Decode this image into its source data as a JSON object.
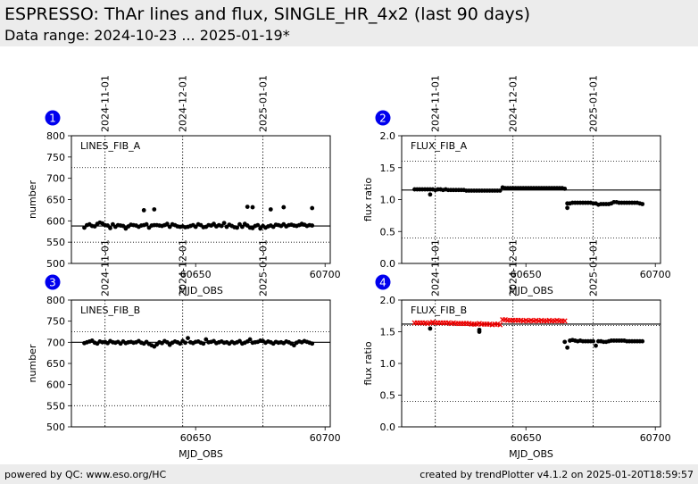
{
  "header": {
    "title": "ESPRESSO: ThAr lines and flux, SINGLE_HR_4x2 (last 90 days)",
    "subtitle": "Data range: 2024-10-23 ... 2025-01-19*"
  },
  "footer": {
    "left": "powered by QC: www.eso.org/HC",
    "right": "created by trendPlotter v4.1.2 on 2025-01-20T18:59:57"
  },
  "colors": {
    "background": "#ffffff",
    "band": "#ececec",
    "badge": "#0000ee",
    "points": "#000000",
    "flagged": "#ee0000"
  },
  "chart_data": [
    {
      "type": "scatter",
      "panel_number": "1",
      "label": "LINES_FIB_A",
      "xlabel": "MJD_OBS",
      "ylabel": "number",
      "xlim": [
        60602,
        60702
      ],
      "ylim": [
        500,
        800
      ],
      "yticks": [
        500,
        550,
        600,
        650,
        700,
        750,
        800
      ],
      "xticks": [
        60650,
        60700
      ],
      "date_marks": [
        {
          "x": 60615,
          "label": "2024-11-01"
        },
        {
          "x": 60645,
          "label": "2024-12-01"
        },
        {
          "x": 60676,
          "label": "2025-01-01"
        }
      ],
      "reference_lines": {
        "median": 588,
        "upper": 725,
        "lower": 550
      },
      "series": [
        {
          "color": "#000000",
          "x": [
            60607,
            60608,
            60609,
            60610,
            60611,
            60612,
            60613,
            60614,
            60615,
            60616,
            60617,
            60618,
            60619,
            60620,
            60621,
            60622,
            60623,
            60624,
            60625,
            60626,
            60627,
            60628,
            60629,
            60630,
            60631,
            60632,
            60633,
            60634,
            60635,
            60636,
            60637,
            60638,
            60639,
            60640,
            60641,
            60642,
            60643,
            60644,
            60645,
            60646,
            60647,
            60648,
            60649,
            60650,
            60651,
            60652,
            60653,
            60654,
            60655,
            60656,
            60657,
            60658,
            60659,
            60660,
            60661,
            60662,
            60663,
            60664,
            60665,
            60666,
            60667,
            60668,
            60669,
            60670,
            60671,
            60672,
            60673,
            60674,
            60675,
            60676,
            60677,
            60678,
            60679,
            60680,
            60681,
            60682,
            60683,
            60684,
            60685,
            60686,
            60687,
            60688,
            60689,
            60690,
            60691,
            60692,
            60693,
            60694,
            60695,
            60630,
            60634,
            60670,
            60672,
            60679,
            60684,
            60695
          ],
          "y": [
            584,
            590,
            592,
            588,
            587,
            593,
            596,
            594,
            590,
            589,
            583,
            592,
            586,
            590,
            589,
            588,
            582,
            587,
            591,
            590,
            589,
            586,
            589,
            590,
            592,
            584,
            589,
            590,
            590,
            589,
            588,
            590,
            593,
            586,
            592,
            590,
            587,
            586,
            587,
            585,
            586,
            588,
            590,
            586,
            592,
            590,
            585,
            586,
            590,
            589,
            593,
            587,
            590,
            588,
            595,
            586,
            591,
            588,
            585,
            584,
            592,
            586,
            593,
            589,
            584,
            583,
            588,
            590,
            582,
            588,
            584,
            587,
            589,
            586,
            591,
            590,
            588,
            592,
            587,
            590,
            591,
            589,
            588,
            590,
            593,
            591,
            588,
            590,
            589,
            625,
            627,
            633,
            632,
            627,
            632,
            630
          ]
        }
      ]
    },
    {
      "type": "scatter",
      "panel_number": "2",
      "label": "FLUX_FIB_A",
      "xlabel": "MJD_OBS",
      "ylabel": "flux ratio",
      "xlim": [
        60602,
        60702
      ],
      "ylim": [
        0.0,
        2.0
      ],
      "yticks": [
        0.0,
        0.5,
        1.0,
        1.5,
        2.0
      ],
      "xticks": [
        60650,
        60700
      ],
      "date_marks": [
        {
          "x": 60615,
          "label": "2024-11-01"
        },
        {
          "x": 60645,
          "label": "2024-12-01"
        },
        {
          "x": 60676,
          "label": "2025-01-01"
        }
      ],
      "reference_lines": {
        "median": 1.15,
        "upper": 1.6,
        "lower": 0.4
      },
      "series": [
        {
          "color": "#000000",
          "x": [
            60607,
            60608,
            60609,
            60610,
            60611,
            60612,
            60613,
            60614,
            60615,
            60616,
            60617,
            60618,
            60619,
            60620,
            60621,
            60622,
            60623,
            60624,
            60625,
            60626,
            60627,
            60628,
            60629,
            60630,
            60631,
            60632,
            60633,
            60634,
            60635,
            60636,
            60637,
            60638,
            60639,
            60640,
            60641,
            60642,
            60643,
            60644,
            60645,
            60646,
            60647,
            60648,
            60649,
            60650,
            60651,
            60652,
            60653,
            60654,
            60655,
            60656,
            60657,
            60658,
            60659,
            60660,
            60661,
            60662,
            60663,
            60664,
            60665,
            60666,
            60667,
            60668,
            60669,
            60670,
            60671,
            60672,
            60673,
            60674,
            60675,
            60676,
            60677,
            60678,
            60679,
            60680,
            60681,
            60682,
            60683,
            60684,
            60685,
            60686,
            60687,
            60688,
            60689,
            60690,
            60691,
            60692,
            60693,
            60694,
            60695,
            60613,
            60666
          ],
          "y": [
            1.16,
            1.16,
            1.16,
            1.16,
            1.16,
            1.16,
            1.16,
            1.16,
            1.15,
            1.16,
            1.16,
            1.15,
            1.16,
            1.15,
            1.15,
            1.15,
            1.15,
            1.15,
            1.15,
            1.15,
            1.14,
            1.14,
            1.14,
            1.14,
            1.14,
            1.14,
            1.14,
            1.14,
            1.14,
            1.14,
            1.14,
            1.14,
            1.14,
            1.14,
            1.19,
            1.18,
            1.18,
            1.18,
            1.18,
            1.18,
            1.18,
            1.18,
            1.18,
            1.18,
            1.18,
            1.18,
            1.18,
            1.18,
            1.18,
            1.18,
            1.18,
            1.18,
            1.18,
            1.18,
            1.18,
            1.18,
            1.18,
            1.18,
            1.17,
            0.94,
            0.94,
            0.95,
            0.95,
            0.95,
            0.95,
            0.95,
            0.95,
            0.95,
            0.95,
            0.94,
            0.94,
            0.92,
            0.93,
            0.93,
            0.93,
            0.93,
            0.94,
            0.96,
            0.96,
            0.95,
            0.95,
            0.95,
            0.95,
            0.95,
            0.95,
            0.95,
            0.95,
            0.94,
            0.93,
            1.08,
            0.87
          ]
        }
      ]
    },
    {
      "type": "scatter",
      "panel_number": "3",
      "label": "LINES_FIB_B",
      "xlabel": "MJD_OBS",
      "ylabel": "number",
      "xlim": [
        60602,
        60702
      ],
      "ylim": [
        500,
        800
      ],
      "yticks": [
        500,
        550,
        600,
        650,
        700,
        750,
        800
      ],
      "xticks": [
        60650,
        60700
      ],
      "date_marks": [
        {
          "x": 60615,
          "label": "2024-11-01"
        },
        {
          "x": 60645,
          "label": "2024-12-01"
        },
        {
          "x": 60676,
          "label": "2025-01-01"
        }
      ],
      "reference_lines": {
        "median": 700,
        "upper": 725,
        "lower": 550
      },
      "series": [
        {
          "color": "#000000",
          "x": [
            60607,
            60608,
            60609,
            60610,
            60611,
            60612,
            60613,
            60614,
            60615,
            60616,
            60617,
            60618,
            60619,
            60620,
            60621,
            60622,
            60623,
            60624,
            60625,
            60626,
            60627,
            60628,
            60629,
            60630,
            60631,
            60632,
            60633,
            60634,
            60635,
            60636,
            60637,
            60638,
            60639,
            60640,
            60641,
            60642,
            60643,
            60644,
            60645,
            60646,
            60647,
            60648,
            60649,
            60650,
            60651,
            60652,
            60653,
            60654,
            60655,
            60656,
            60657,
            60658,
            60659,
            60660,
            60661,
            60662,
            60663,
            60664,
            60665,
            60666,
            60667,
            60668,
            60669,
            60670,
            60671,
            60672,
            60673,
            60674,
            60675,
            60676,
            60677,
            60678,
            60679,
            60680,
            60681,
            60682,
            60683,
            60684,
            60685,
            60686,
            60687,
            60688,
            60689,
            60690,
            60691,
            60692,
            60693,
            60694,
            60695
          ],
          "y": [
            698,
            700,
            702,
            704,
            699,
            697,
            702,
            700,
            701,
            698,
            703,
            700,
            699,
            701,
            697,
            702,
            698,
            700,
            701,
            699,
            700,
            703,
            699,
            697,
            701,
            696,
            693,
            690,
            695,
            700,
            698,
            703,
            700,
            694,
            699,
            702,
            700,
            697,
            703,
            699,
            710,
            700,
            698,
            701,
            702,
            699,
            697,
            707,
            700,
            701,
            703,
            698,
            700,
            702,
            699,
            700,
            697,
            701,
            698,
            700,
            703,
            697,
            699,
            702,
            707,
            699,
            700,
            701,
            704,
            703,
            699,
            702,
            700,
            697,
            701,
            699,
            700,
            698,
            702,
            700,
            697,
            693,
            699,
            702,
            700,
            703,
            701,
            699,
            697
          ]
        }
      ]
    },
    {
      "type": "scatter",
      "panel_number": "4",
      "label": "FLUX_FIB_B",
      "xlabel": "MJD_OBS",
      "ylabel": "flux ratio",
      "xlim": [
        60602,
        60702
      ],
      "ylim": [
        0.0,
        2.0
      ],
      "yticks": [
        0.0,
        0.5,
        1.0,
        1.5,
        2.0
      ],
      "xticks": [
        60650,
        60700
      ],
      "date_marks": [
        {
          "x": 60615,
          "label": "2024-11-01"
        },
        {
          "x": 60645,
          "label": "2024-12-01"
        },
        {
          "x": 60676,
          "label": "2025-01-01"
        }
      ],
      "reference_lines": {
        "median": 1.62,
        "upper": 1.6,
        "lower": 0.4
      },
      "series": [
        {
          "color": "#ee0000",
          "marker": "x",
          "x": [
            60607,
            60608,
            60609,
            60610,
            60611,
            60612,
            60613,
            60614,
            60615,
            60616,
            60617,
            60618,
            60619,
            60620,
            60621,
            60622,
            60623,
            60624,
            60625,
            60626,
            60627,
            60628,
            60629,
            60630,
            60631,
            60632,
            60633,
            60634,
            60635,
            60636,
            60637,
            60638,
            60639,
            60640,
            60641,
            60642,
            60643,
            60644,
            60645,
            60646,
            60647,
            60648,
            60649,
            60650,
            60651,
            60652,
            60653,
            60654,
            60655,
            60656,
            60657,
            60658,
            60659,
            60660,
            60661,
            60662,
            60663,
            60664,
            60665
          ],
          "y": [
            1.64,
            1.64,
            1.64,
            1.64,
            1.64,
            1.63,
            1.64,
            1.65,
            1.64,
            1.64,
            1.64,
            1.64,
            1.64,
            1.64,
            1.63,
            1.64,
            1.63,
            1.63,
            1.63,
            1.63,
            1.63,
            1.63,
            1.62,
            1.62,
            1.62,
            1.63,
            1.62,
            1.62,
            1.62,
            1.62,
            1.61,
            1.62,
            1.62,
            1.61,
            1.69,
            1.69,
            1.68,
            1.68,
            1.68,
            1.68,
            1.68,
            1.68,
            1.67,
            1.68,
            1.67,
            1.68,
            1.67,
            1.68,
            1.67,
            1.68,
            1.67,
            1.67,
            1.68,
            1.67,
            1.67,
            1.68,
            1.67,
            1.67,
            1.67
          ]
        },
        {
          "color": "#000000",
          "x": [
            60613,
            60632,
            60632,
            60665,
            60666,
            60667,
            60668,
            60669,
            60670,
            60671,
            60672,
            60673,
            60674,
            60675,
            60676,
            60677,
            60678,
            60679,
            60680,
            60681,
            60682,
            60683,
            60684,
            60685,
            60686,
            60687,
            60688,
            60689,
            60690,
            60691,
            60692,
            60693,
            60694,
            60695
          ],
          "y": [
            1.55,
            1.53,
            1.5,
            1.34,
            1.25,
            1.36,
            1.37,
            1.36,
            1.35,
            1.36,
            1.35,
            1.35,
            1.35,
            1.35,
            1.35,
            1.28,
            1.35,
            1.35,
            1.34,
            1.34,
            1.35,
            1.36,
            1.36,
            1.36,
            1.36,
            1.36,
            1.36,
            1.35,
            1.35,
            1.35,
            1.35,
            1.35,
            1.35,
            1.35
          ]
        }
      ]
    }
  ]
}
